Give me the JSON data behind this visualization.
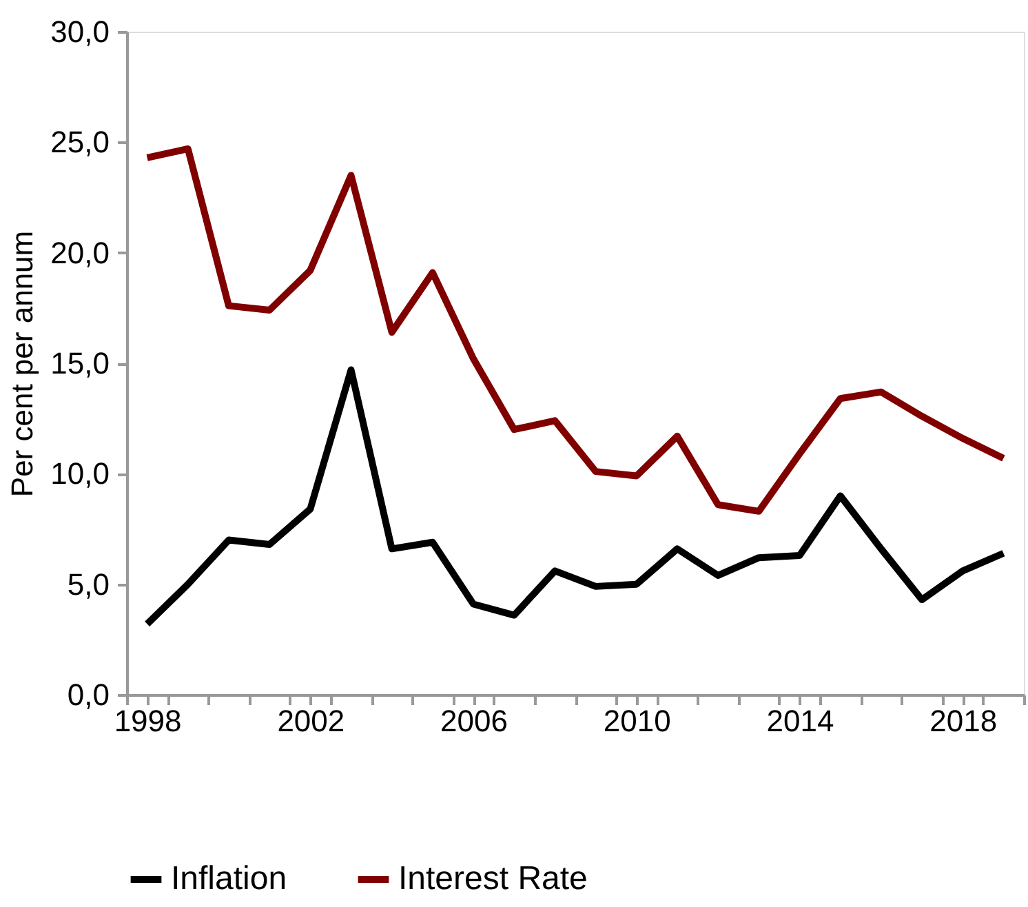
{
  "chart_data": {
    "type": "line",
    "ylabel": "Per cent per annum",
    "x": [
      1998,
      1999,
      2000,
      2001,
      2002,
      2003,
      2004,
      2005,
      2006,
      2007,
      2008,
      2009,
      2010,
      2011,
      2012,
      2013,
      2014,
      2015,
      2016,
      2017,
      2018,
      2019
    ],
    "series": [
      {
        "name": "Inflation",
        "color": "#000000",
        "values": [
          3.2,
          5.0,
          7.0,
          6.8,
          8.4,
          14.7,
          6.6,
          6.9,
          4.1,
          3.6,
          5.6,
          4.9,
          5.0,
          6.6,
          5.4,
          6.2,
          6.3,
          9.0,
          6.6,
          4.3,
          5.6,
          6.4
        ]
      },
      {
        "name": "Interest Rate",
        "color": "#800000",
        "values": [
          24.3,
          24.7,
          17.6,
          17.4,
          19.2,
          23.5,
          16.4,
          19.1,
          15.2,
          12.0,
          12.4,
          10.1,
          9.9,
          11.7,
          8.6,
          8.3,
          10.9,
          13.4,
          13.7,
          12.6,
          11.6,
          10.7
        ]
      }
    ],
    "xlim": [
      1997.5,
      2019.5
    ],
    "xticks": [
      {
        "value": 1997.5,
        "label": null
      },
      {
        "value": 1998,
        "label": "1998"
      },
      {
        "value": 1998.5,
        "label": null
      },
      {
        "value": 1999.5,
        "label": null
      },
      {
        "value": 2000.5,
        "label": null
      },
      {
        "value": 2001.5,
        "label": null
      },
      {
        "value": 2002,
        "label": "2002"
      },
      {
        "value": 2002.5,
        "label": null
      },
      {
        "value": 2003.5,
        "label": null
      },
      {
        "value": 2004.5,
        "label": null
      },
      {
        "value": 2005.5,
        "label": null
      },
      {
        "value": 2006,
        "label": "2006"
      },
      {
        "value": 2006.5,
        "label": null
      },
      {
        "value": 2007.5,
        "label": null
      },
      {
        "value": 2008.5,
        "label": null
      },
      {
        "value": 2009.5,
        "label": null
      },
      {
        "value": 2010,
        "label": "2010"
      },
      {
        "value": 2010.5,
        "label": null
      },
      {
        "value": 2011.5,
        "label": null
      },
      {
        "value": 2012.5,
        "label": null
      },
      {
        "value": 2013.5,
        "label": null
      },
      {
        "value": 2014,
        "label": "2014"
      },
      {
        "value": 2014.5,
        "label": null
      },
      {
        "value": 2015.5,
        "label": null
      },
      {
        "value": 2016.5,
        "label": null
      },
      {
        "value": 2017.5,
        "label": null
      },
      {
        "value": 2018,
        "label": "2018"
      },
      {
        "value": 2018.5,
        "label": null
      },
      {
        "value": 2019.5,
        "label": null
      }
    ],
    "ylim": [
      0,
      30
    ],
    "yticks": [
      {
        "value": 0,
        "label": "0,0"
      },
      {
        "value": 5,
        "label": "5,0"
      },
      {
        "value": 10,
        "label": "10,0"
      },
      {
        "value": 15,
        "label": "15,0"
      },
      {
        "value": 20,
        "label": "20,0"
      },
      {
        "value": 25,
        "label": "25,0"
      },
      {
        "value": 30,
        "label": "30,0"
      }
    ],
    "grid": false,
    "legend": "bottom",
    "marker": "none",
    "line_style": "solid"
  }
}
